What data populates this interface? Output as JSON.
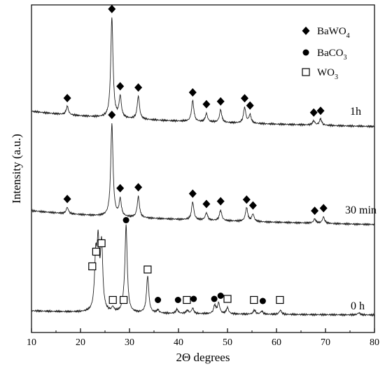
{
  "chart_data": {
    "type": "line",
    "title": "",
    "xlabel": "2Θ degrees",
    "ylabel": "Intensity (a.u.)",
    "xlim": [
      10,
      80
    ],
    "xticks": [
      10,
      20,
      30,
      40,
      50,
      60,
      70,
      80
    ],
    "grid": false,
    "legend_position": "top-right",
    "legend": [
      {
        "marker": "diamond",
        "label": "BaWO",
        "sub": "4"
      },
      {
        "marker": "circle",
        "label": "BaCO",
        "sub": "3"
      },
      {
        "marker": "square",
        "label": "WO",
        "sub": "3"
      }
    ],
    "series": [
      {
        "name": "1h",
        "peaks": [
          [
            17.3,
            0.08
          ],
          [
            26.4,
            0.95
          ],
          [
            28.1,
            0.2
          ],
          [
            31.8,
            0.22
          ],
          [
            42.9,
            0.2
          ],
          [
            45.7,
            0.08
          ],
          [
            48.6,
            0.12
          ],
          [
            53.5,
            0.15
          ],
          [
            54.6,
            0.08
          ],
          [
            67.6,
            0.04
          ],
          [
            69.0,
            0.06
          ]
        ],
        "markers": [
          {
            "type": "diamond",
            "x": 17.3
          },
          {
            "type": "diamond",
            "x": 26.4
          },
          {
            "type": "diamond",
            "x": 28.1
          },
          {
            "type": "diamond",
            "x": 31.8
          },
          {
            "type": "diamond",
            "x": 42.9
          },
          {
            "type": "diamond",
            "x": 45.7
          },
          {
            "type": "diamond",
            "x": 48.6
          },
          {
            "type": "diamond",
            "x": 53.5
          },
          {
            "type": "diamond",
            "x": 54.6
          },
          {
            "type": "diamond",
            "x": 67.6
          },
          {
            "type": "diamond",
            "x": 69.0
          }
        ]
      },
      {
        "name": "30 min",
        "peaks": [
          [
            17.3,
            0.06
          ],
          [
            26.4,
            0.88
          ],
          [
            28.1,
            0.16
          ],
          [
            31.8,
            0.2
          ],
          [
            42.9,
            0.17
          ],
          [
            45.7,
            0.07
          ],
          [
            48.6,
            0.1
          ],
          [
            53.9,
            0.13
          ],
          [
            55.2,
            0.07
          ],
          [
            67.8,
            0.04
          ],
          [
            69.6,
            0.06
          ]
        ],
        "markers": [
          {
            "type": "diamond",
            "x": 17.3
          },
          {
            "type": "diamond",
            "x": 26.4
          },
          {
            "type": "diamond",
            "x": 28.1
          },
          {
            "type": "diamond",
            "x": 31.8
          },
          {
            "type": "diamond",
            "x": 42.9
          },
          {
            "type": "diamond",
            "x": 45.7
          },
          {
            "type": "diamond",
            "x": 48.6
          },
          {
            "type": "diamond",
            "x": 53.9
          },
          {
            "type": "diamond",
            "x": 55.2
          },
          {
            "type": "diamond",
            "x": 67.8
          },
          {
            "type": "diamond",
            "x": 69.6
          }
        ]
      },
      {
        "name": "0 h",
        "peaks": [
          [
            23.1,
            0.48
          ],
          [
            23.6,
            0.58
          ],
          [
            24.3,
            0.62
          ],
          [
            29.3,
            0.82
          ],
          [
            33.7,
            0.35
          ],
          [
            26.6,
            0.04
          ],
          [
            28.8,
            0.04
          ],
          [
            35.8,
            0.03
          ],
          [
            39.7,
            0.04
          ],
          [
            41.8,
            0.03
          ],
          [
            42.9,
            0.05
          ],
          [
            47.4,
            0.08
          ],
          [
            48.2,
            0.1
          ],
          [
            50.0,
            0.06
          ],
          [
            55.5,
            0.04
          ],
          [
            57.0,
            0.03
          ],
          [
            60.8,
            0.04
          ],
          [
            76.8,
            0.02
          ]
        ],
        "markers": [
          {
            "type": "square",
            "x": 22.4,
            "y": 0.41
          },
          {
            "type": "square",
            "x": 23.2,
            "y": 0.55
          },
          {
            "type": "square",
            "x": 24.3,
            "y": 0.63
          },
          {
            "type": "circle",
            "x": 29.3,
            "y": 0.85
          },
          {
            "type": "square",
            "x": 33.7,
            "y": 0.38
          },
          {
            "type": "square",
            "x": 26.6,
            "y": 0.09
          },
          {
            "type": "square",
            "x": 28.8,
            "y": 0.09
          },
          {
            "type": "circle",
            "x": 35.8,
            "y": 0.09
          },
          {
            "type": "circle",
            "x": 39.9,
            "y": 0.09
          },
          {
            "type": "square",
            "x": 41.7,
            "y": 0.09
          },
          {
            "type": "circle",
            "x": 43.1,
            "y": 0.1
          },
          {
            "type": "circle",
            "x": 47.3,
            "y": 0.1
          },
          {
            "type": "circle",
            "x": 48.6,
            "y": 0.13
          },
          {
            "type": "square",
            "x": 50.0,
            "y": 0.1
          },
          {
            "type": "square",
            "x": 55.4,
            "y": 0.09
          },
          {
            "type": "circle",
            "x": 57.2,
            "y": 0.08
          },
          {
            "type": "square",
            "x": 60.7,
            "y": 0.09
          }
        ]
      }
    ]
  }
}
